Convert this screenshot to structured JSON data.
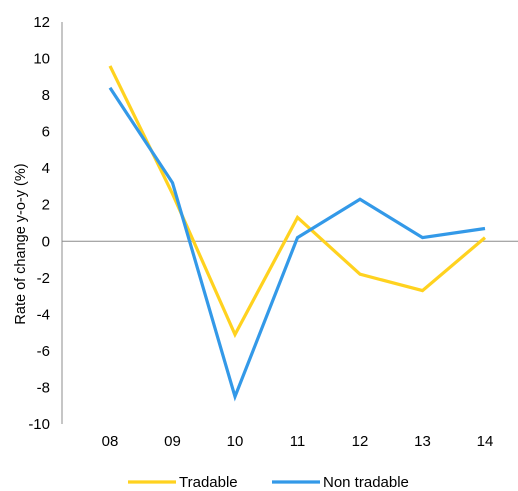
{
  "chart_data": {
    "type": "line",
    "categories": [
      "08",
      "09",
      "10",
      "11",
      "12",
      "13",
      "14"
    ],
    "ylabel": "Rate of change y-o-y (%)",
    "xlabel": "",
    "ylim": [
      -10,
      12
    ],
    "yticks": [
      12,
      10,
      8,
      6,
      4,
      2,
      0,
      -2,
      -4,
      -6,
      -8,
      -10
    ],
    "grid": false,
    "legend_position": "bottom",
    "series": [
      {
        "name": "Tradable",
        "color": "#FFD21F",
        "values": [
          9.6,
          2.6,
          -5.1,
          1.3,
          -1.8,
          -2.7,
          0.2
        ]
      },
      {
        "name": "Non tradable",
        "color": "#3399E8",
        "values": [
          8.4,
          3.2,
          -8.5,
          0.2,
          2.3,
          0.2,
          0.7
        ]
      }
    ]
  }
}
